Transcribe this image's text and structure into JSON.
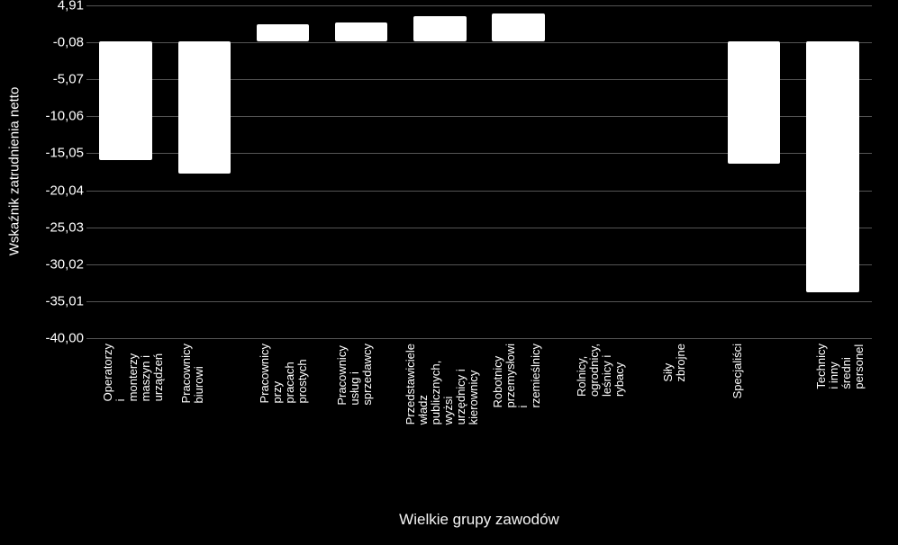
{
  "chart": {
    "type": "bar",
    "background_color": "#000000",
    "bar_color": "#ffffff",
    "grid_color": "#555555",
    "text_color": "#ffffff",
    "ylabel": "Wskaźnik zatrudnienia netto",
    "xlabel": "Wielkie grupy zawodów",
    "ylim": [
      -40.0,
      4.91
    ],
    "yticks": [
      {
        "v": 4.91,
        "label": "4,91"
      },
      {
        "v": -0.08,
        "label": "-0,08"
      },
      {
        "v": -5.07,
        "label": "-5,07"
      },
      {
        "v": -10.06,
        "label": "-10,06"
      },
      {
        "v": -15.05,
        "label": "-15,05"
      },
      {
        "v": -20.04,
        "label": "-20,04"
      },
      {
        "v": -25.03,
        "label": "-25,03"
      },
      {
        "v": -30.02,
        "label": "-30,02"
      },
      {
        "v": -35.01,
        "label": "-35,01"
      },
      {
        "v": -40.0,
        "label": "-40,00"
      }
    ],
    "categories": [
      "Operatorzy i\nmonterzy maszyn i\nurządzeń",
      "Pracownicy\nbiurowi",
      "Pracownicy\nprzy\npracach\nprostych",
      "Pracownicy\nusług i\nsprzedawcy",
      "Przedstawiciele\nwładz publicznych,\nwyżsi urzędnicy i\nkierownicy",
      "Robotnicy\nprzemysłowi\ni\nrzemieślnicy",
      "Rolnicy,\nogrodnicy,\nleśnicy i\nrybacy",
      "Siły\nzbrojne",
      "Specjaliści",
      "Technicy\ni inny\nśredni\npersonel"
    ],
    "values": [
      -16.0,
      -17.8,
      2.4,
      2.6,
      3.4,
      3.8,
      0.0,
      0.0,
      -16.5,
      -33.8
    ],
    "bar_width": 0.67,
    "ylabel_fontsize": 15,
    "xlabel_fontsize": 17,
    "tick_fontsize": 15,
    "category_fontsize": 13
  }
}
